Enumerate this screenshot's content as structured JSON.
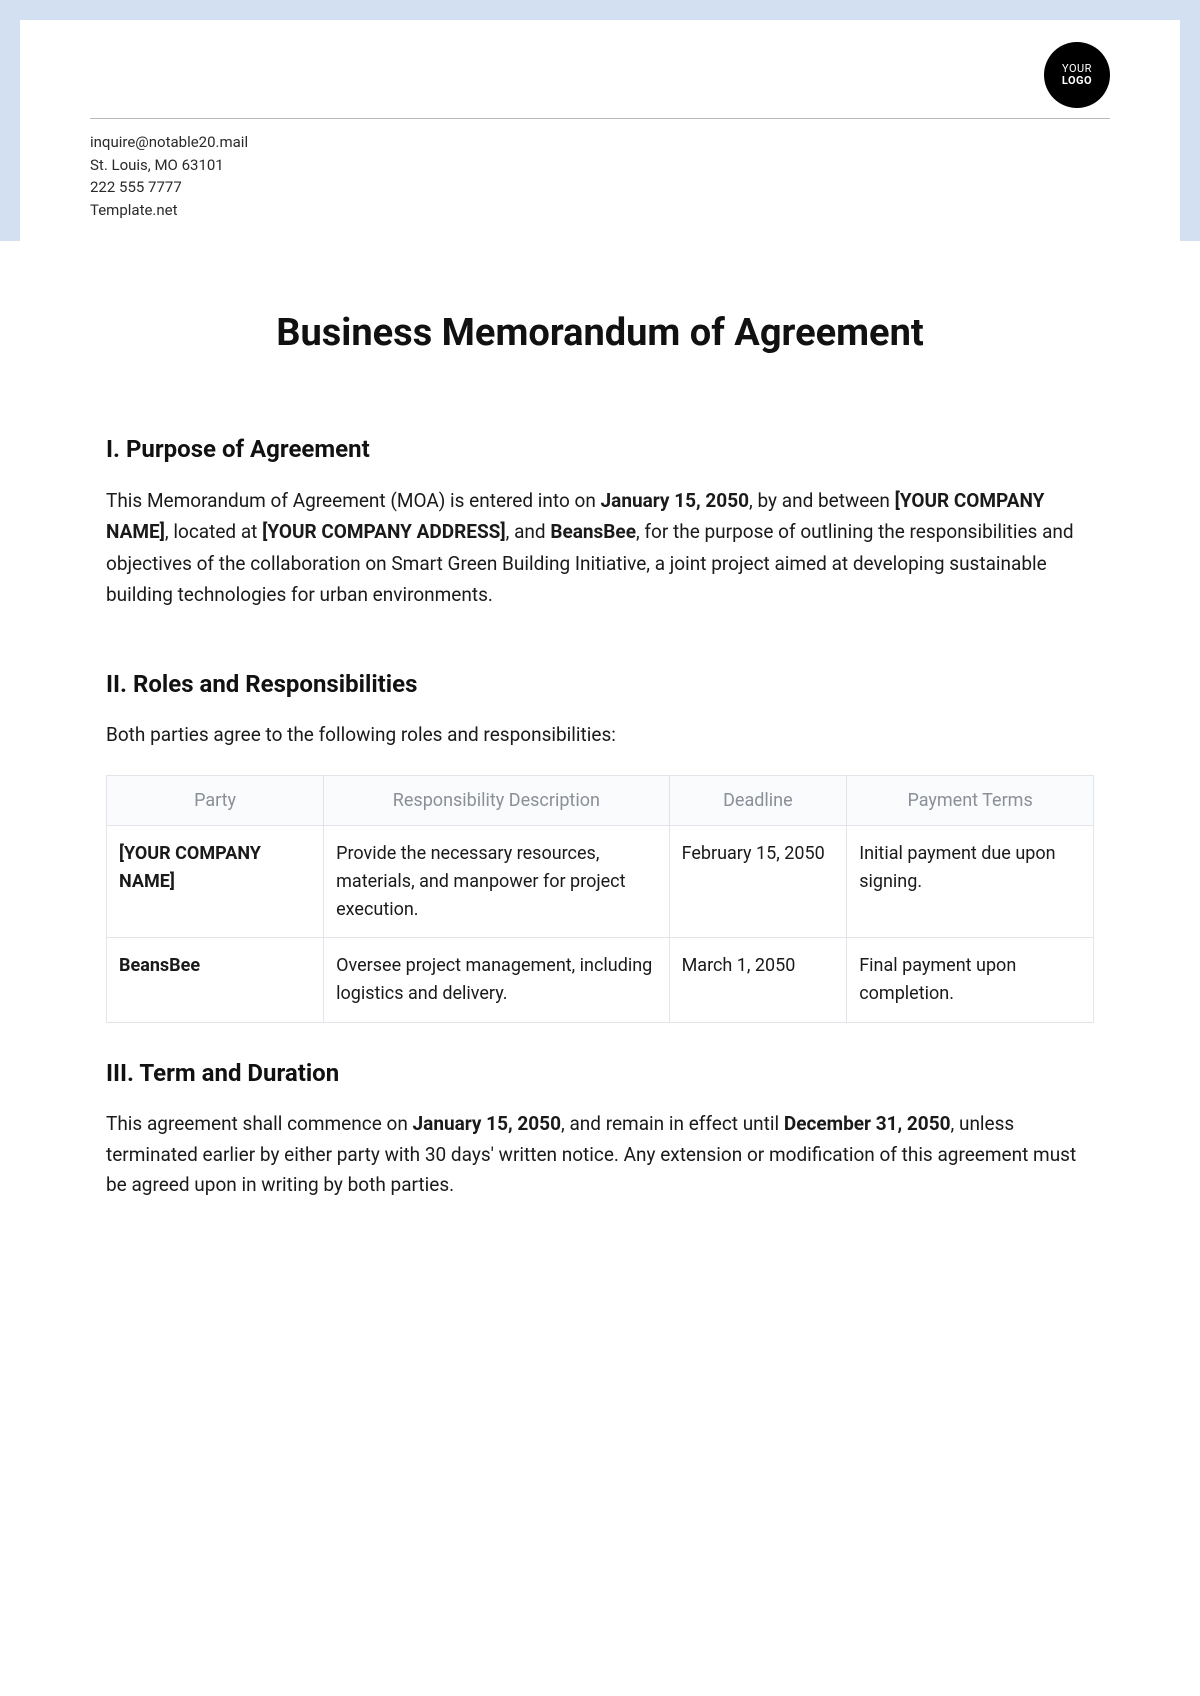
{
  "header": {
    "logo_line1": "YOUR",
    "logo_line2": "LOGO",
    "contact": {
      "email": "inquire@notable20.mail",
      "address": "St. Louis, MO 63101",
      "phone": "222 555 7777",
      "site": "Template.net"
    }
  },
  "title": "Business Memorandum of Agreement",
  "section1": {
    "heading": "I. Purpose of Agreement",
    "p_a": "This Memorandum of Agreement (MOA) is entered into on ",
    "date1": "January 15, 2050",
    "p_b": ", by and between ",
    "company": "[YOUR COMPANY NAME]",
    "p_c": ", located at ",
    "addr": "[YOUR COMPANY ADDRESS]",
    "p_d": ", and ",
    "party2": "BeansBee",
    "p_e": ", for the purpose of outlining the responsibilities and objectives of the collaboration on Smart Green Building Initiative, a joint project aimed at developing sustainable building technologies for urban environments."
  },
  "section2": {
    "heading": "II. Roles and Responsibilities",
    "intro": "Both parties agree to the following roles and responsibilities:",
    "columns": [
      "Party",
      "Responsibility Description",
      "Deadline",
      "Payment Terms"
    ],
    "rows": [
      {
        "party": "[YOUR COMPANY NAME]",
        "resp": "Provide the necessary resources, materials, and manpower for project execution.",
        "deadline": "February 15, 2050",
        "payment": "Initial payment due upon signing."
      },
      {
        "party": "BeansBee",
        "resp": "Oversee project management, including logistics and delivery.",
        "deadline": "March 1, 2050",
        "payment": "Final payment upon completion."
      }
    ]
  },
  "section3": {
    "heading": "III. Term and Duration",
    "p_a": "This agreement shall commence on ",
    "date1": "January 15, 2050",
    "p_b": ", and remain in effect until ",
    "date2": "December 31, 2050",
    "p_c": ", unless terminated earlier by either party with 30 days' written notice. Any extension or modification of this agreement must be agreed upon in writing by both parties."
  }
}
